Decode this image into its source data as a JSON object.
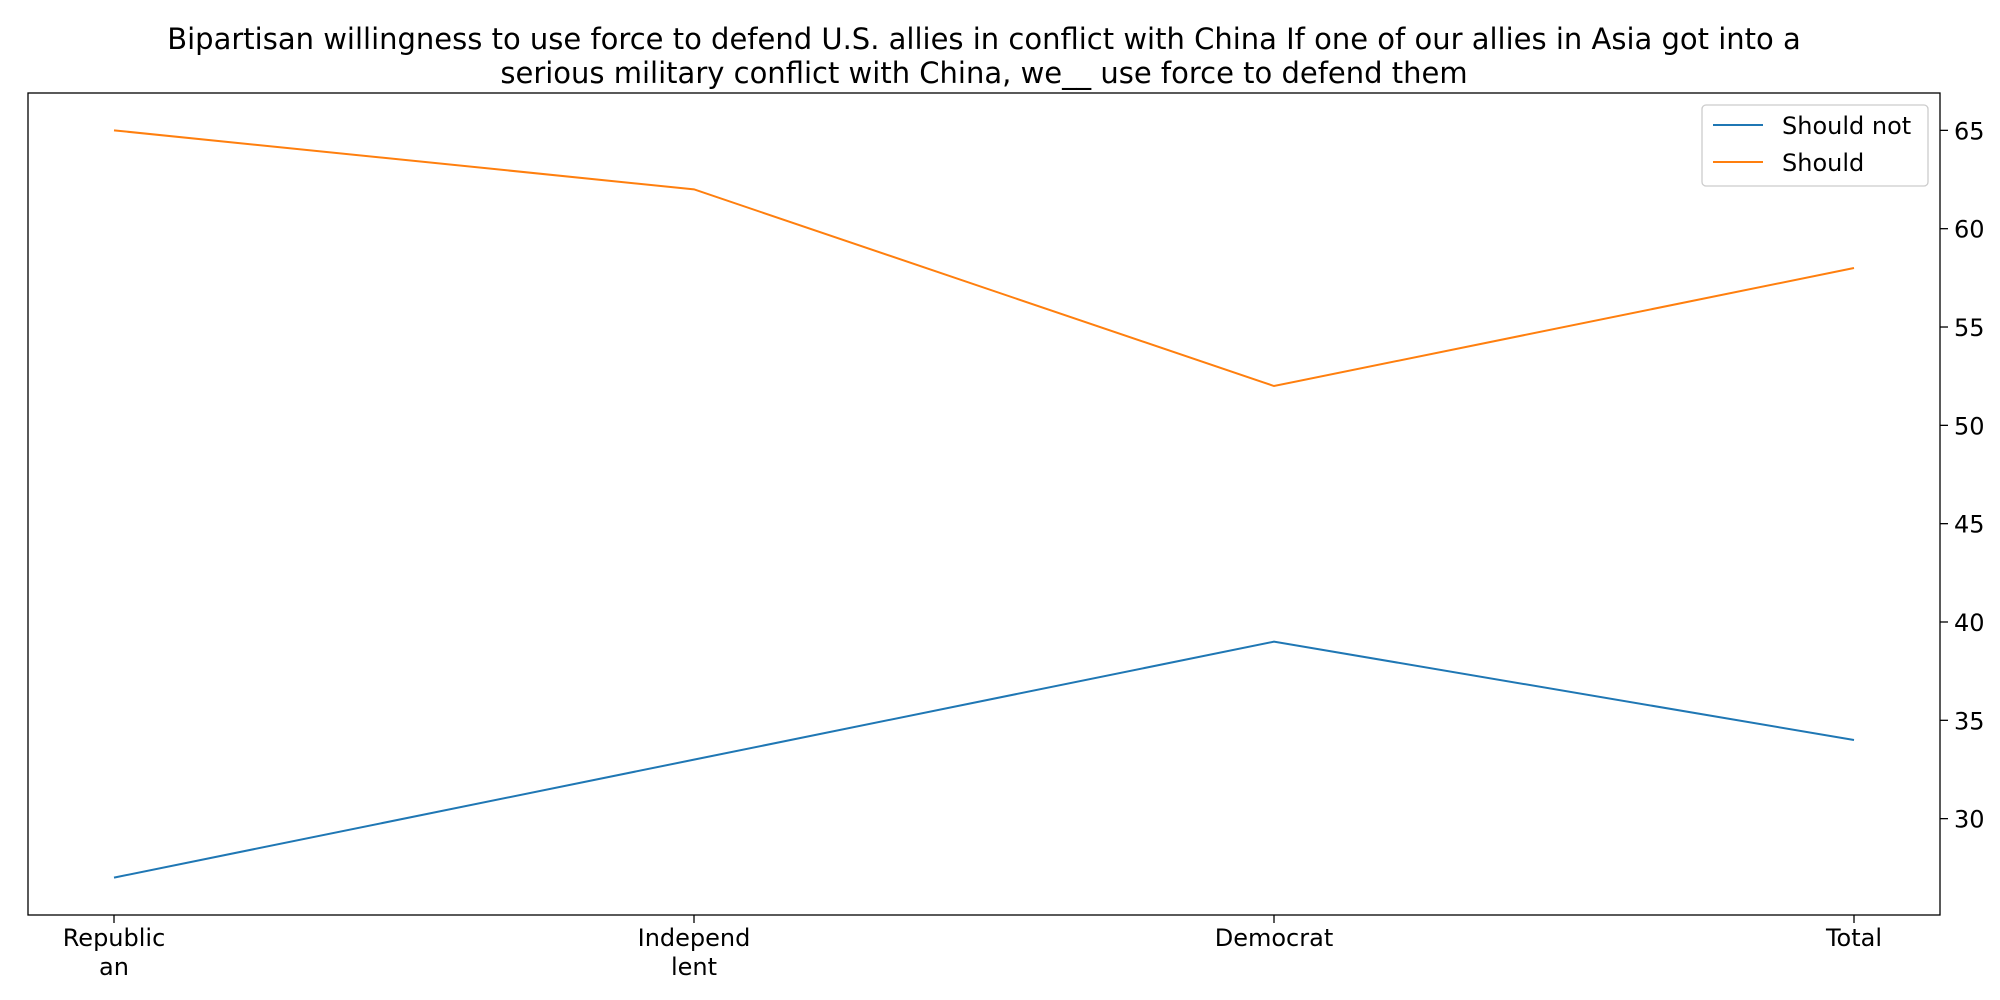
{
  "chart_data": {
    "type": "line",
    "title_lines": [
      "Bipartisan willingness to use force to defend U.S. allies in conflict with China If one of our allies in Asia got into a",
      "serious military conflict with China, we__ use force to defend them"
    ],
    "categories": [
      [
        "Republic",
        "an"
      ],
      [
        "Independ",
        "lent"
      ],
      [
        "Democrat"
      ],
      [
        "Total"
      ]
    ],
    "series": [
      {
        "name": "Should not",
        "color": "#1f77b4",
        "values": [
          27,
          33,
          39,
          34
        ]
      },
      {
        "name": "Should",
        "color": "#ff7f0e",
        "values": [
          65,
          62,
          52,
          58
        ]
      }
    ],
    "yticks": [
      30,
      35,
      40,
      45,
      50,
      55,
      60,
      65
    ],
    "ylim": [
      25.1,
      66.9
    ],
    "y_axis_side": "right",
    "grid": false,
    "legend_position": "top-right"
  }
}
